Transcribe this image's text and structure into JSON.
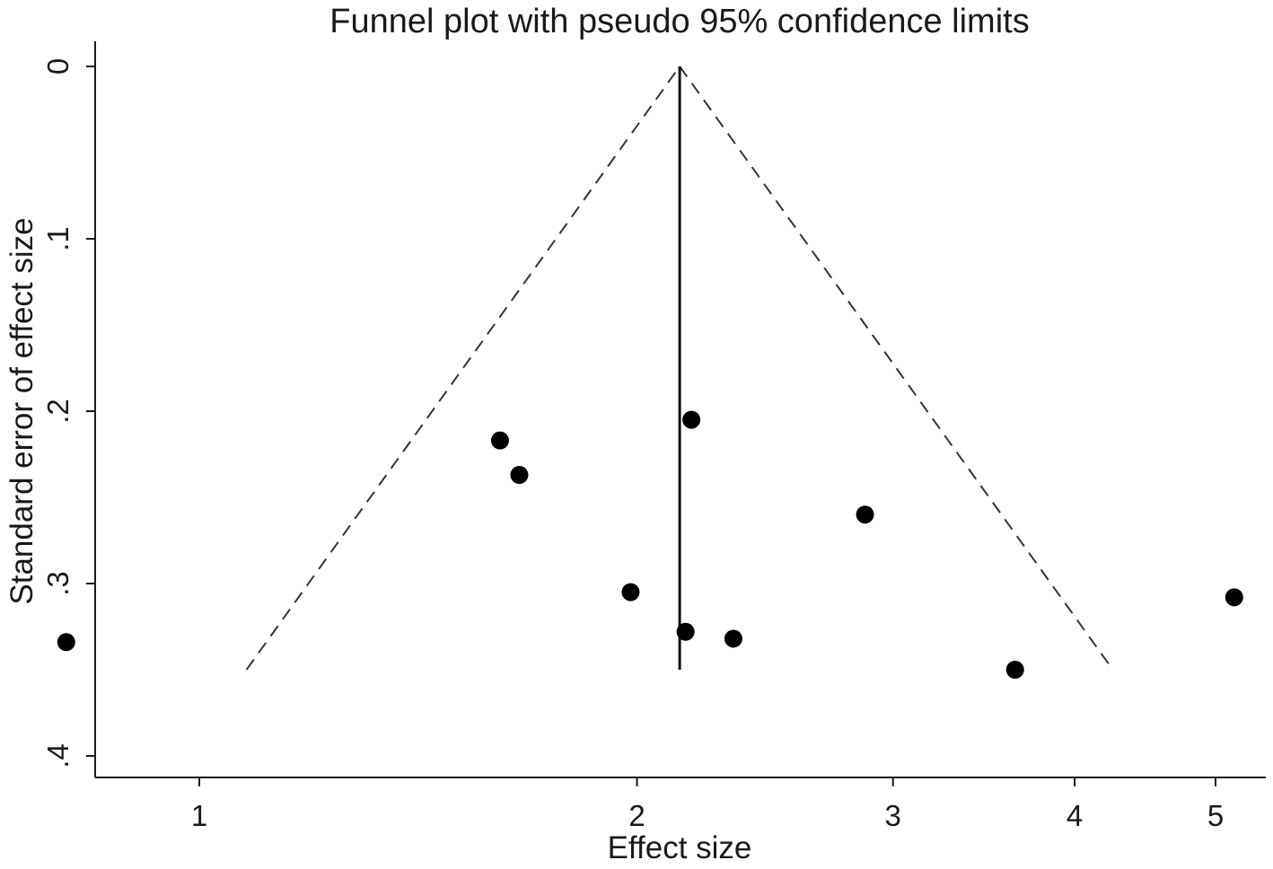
{
  "chart_data": {
    "type": "scatter",
    "title": "Funnel plot with pseudo 95% confidence limits",
    "xlabel": "Effect size",
    "ylabel": "Standard error of effect size",
    "x_scale": "log",
    "x_ticks": [
      1,
      2,
      3,
      4,
      5
    ],
    "x_tick_labels": [
      "1",
      "2",
      "3",
      "4",
      "5"
    ],
    "y_ticks": [
      0,
      0.1,
      0.2,
      0.3,
      0.4
    ],
    "y_tick_labels": [
      "0",
      ".1",
      ".2",
      ".3",
      ".4"
    ],
    "y_reversed": true,
    "xlim": [
      0.81,
      5.15
    ],
    "ylim": [
      0,
      0.41
    ],
    "pooled_effect": 2.14,
    "confidence_limits": {
      "se_max": 0.35,
      "z": 1.96
    },
    "points": [
      {
        "x": 0.81,
        "y": 0.334
      },
      {
        "x": 1.61,
        "y": 0.217
      },
      {
        "x": 1.66,
        "y": 0.237
      },
      {
        "x": 2.18,
        "y": 0.205
      },
      {
        "x": 1.98,
        "y": 0.305
      },
      {
        "x": 2.16,
        "y": 0.328
      },
      {
        "x": 2.33,
        "y": 0.332
      },
      {
        "x": 2.87,
        "y": 0.26
      },
      {
        "x": 3.64,
        "y": 0.35
      },
      {
        "x": 5.15,
        "y": 0.308
      }
    ],
    "grid": false,
    "legend": "none"
  }
}
